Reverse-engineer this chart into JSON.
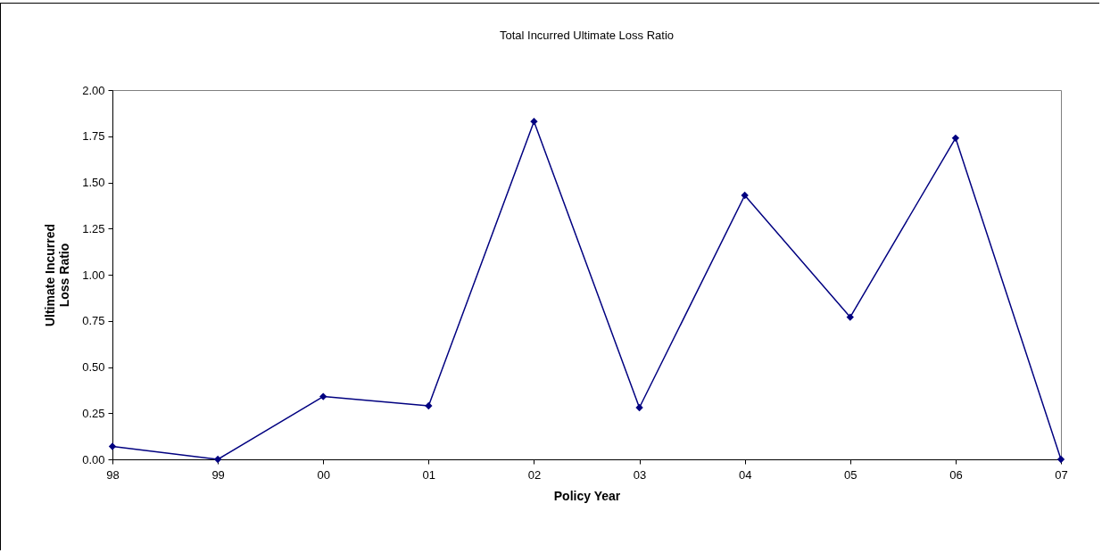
{
  "chart_data": {
    "type": "line",
    "title": "Total Incurred Ultimate Loss Ratio",
    "xlabel": "Policy Year",
    "ylabel": "Ultimate Incurred Loss Ratio",
    "categories": [
      "98",
      "99",
      "00",
      "01",
      "02",
      "03",
      "04",
      "05",
      "06",
      "07"
    ],
    "series": [
      {
        "color": "#000080",
        "values": [
          0.07,
          0.0,
          0.34,
          0.29,
          1.83,
          0.28,
          1.43,
          0.77,
          1.74,
          0.0
        ]
      }
    ],
    "ylim": [
      0,
      2
    ],
    "yticks": [
      {
        "value": 0,
        "label": "0.00"
      },
      {
        "value": 0.25,
        "label": "0.25"
      },
      {
        "value": 0.5,
        "label": "0.50"
      },
      {
        "value": 0.75,
        "label": "0.75"
      },
      {
        "value": 1,
        "label": "1.00"
      },
      {
        "value": 1.25,
        "label": "1.25"
      },
      {
        "value": 1.5,
        "label": "1.50"
      },
      {
        "value": 1.75,
        "label": "1.75"
      },
      {
        "value": 2,
        "label": "2.00"
      }
    ],
    "grid": false,
    "marker": "diamond",
    "line_style": "solid"
  }
}
